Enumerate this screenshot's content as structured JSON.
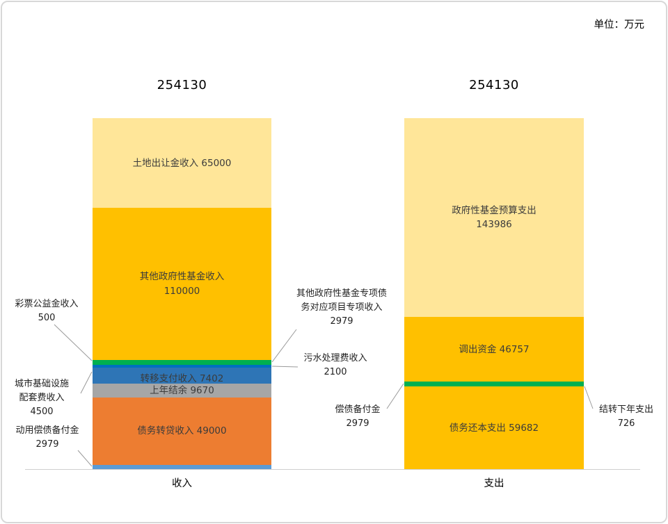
{
  "unit_label": "单位：万元",
  "chart_data": {
    "type": "bar",
    "subtype": "stacked-column-pair",
    "unit": "万元",
    "legend": "none",
    "grid": false,
    "columns": [
      {
        "category": "收入",
        "total": 254130,
        "total_label": "254130",
        "segments": [
          {
            "id": "land-sale-income",
            "label": "土地出让金收入",
            "value": 65000,
            "color": "#FFE699",
            "inside_label": "土地出让金收入 65000"
          },
          {
            "id": "other-govt-fund-income",
            "label": "其他政府性基金收入",
            "value": 110000,
            "color": "#FFC000",
            "inside_label": "其他政府性基金收入\n110000"
          },
          {
            "id": "lottery-income",
            "label": "彩票公益金收入",
            "value": 500,
            "color": "#00B050"
          },
          {
            "id": "special-debt-income",
            "label": "其他政府性基金专项债务对应项目专项收入",
            "value": 2979,
            "color": "#00B050"
          },
          {
            "id": "sewage-fee-income",
            "label": "污水处理费收入",
            "value": 2100,
            "color": "#0070C0"
          },
          {
            "id": "infra-fee-income",
            "label": "城市基础设施配套费收入",
            "value": 4500,
            "color": "#2E75B6"
          },
          {
            "id": "transfer-income",
            "label": "转移支付收入",
            "value": 7402,
            "color": "#2E75B6",
            "inside_label": "转移支付收入 7402"
          },
          {
            "id": "prev-year-balance",
            "label": "上年结余",
            "value": 9670,
            "color": "#A6A6A6",
            "inside_label": "上年结余 9670"
          },
          {
            "id": "debt-relending-income",
            "label": "债务转贷收入",
            "value": 49000,
            "color": "#ED7D31",
            "inside_label": "债务转贷收入 49000"
          },
          {
            "id": "reserve-fund-use",
            "label": "动用偿债备付金",
            "value": 2979,
            "color": "#5B9BD5"
          }
        ]
      },
      {
        "category": "支出",
        "total": 254130,
        "total_label": "254130",
        "segments": [
          {
            "id": "govt-fund-budget-expense",
            "label": "政府性基金预算支出",
            "value": 143986,
            "color": "#FFE699",
            "inside_label": "政府性基金预算支出\n143986"
          },
          {
            "id": "transfer-out-funds",
            "label": "调出资金",
            "value": 46757,
            "color": "#FFC000",
            "inside_label": "调出资金 46757"
          },
          {
            "id": "debt-repay-reserve",
            "label": "偿债备付金",
            "value": 2979,
            "color": "#00B050"
          },
          {
            "id": "carryover-next-year",
            "label": "结转下年支出",
            "value": 726,
            "color": "#00B050"
          },
          {
            "id": "debt-principal-repay",
            "label": "债务还本支出",
            "value": 59682,
            "color": "#FFC000",
            "inside_label": "债务还本支出 59682"
          }
        ]
      }
    ]
  },
  "callouts": {
    "lottery": "彩票公益金收入\n500",
    "infra": "城市基础设施\n配套费收入\n4500",
    "reserve_use": "动用偿债备付金\n2979",
    "special_debt": "其他政府性基金专项债\n务对应项目专项收入\n2979",
    "sewage": "污水处理费收入\n2100",
    "repay_reserve": "偿债备付金\n2979",
    "carryover": "结转下年支出\n726"
  }
}
